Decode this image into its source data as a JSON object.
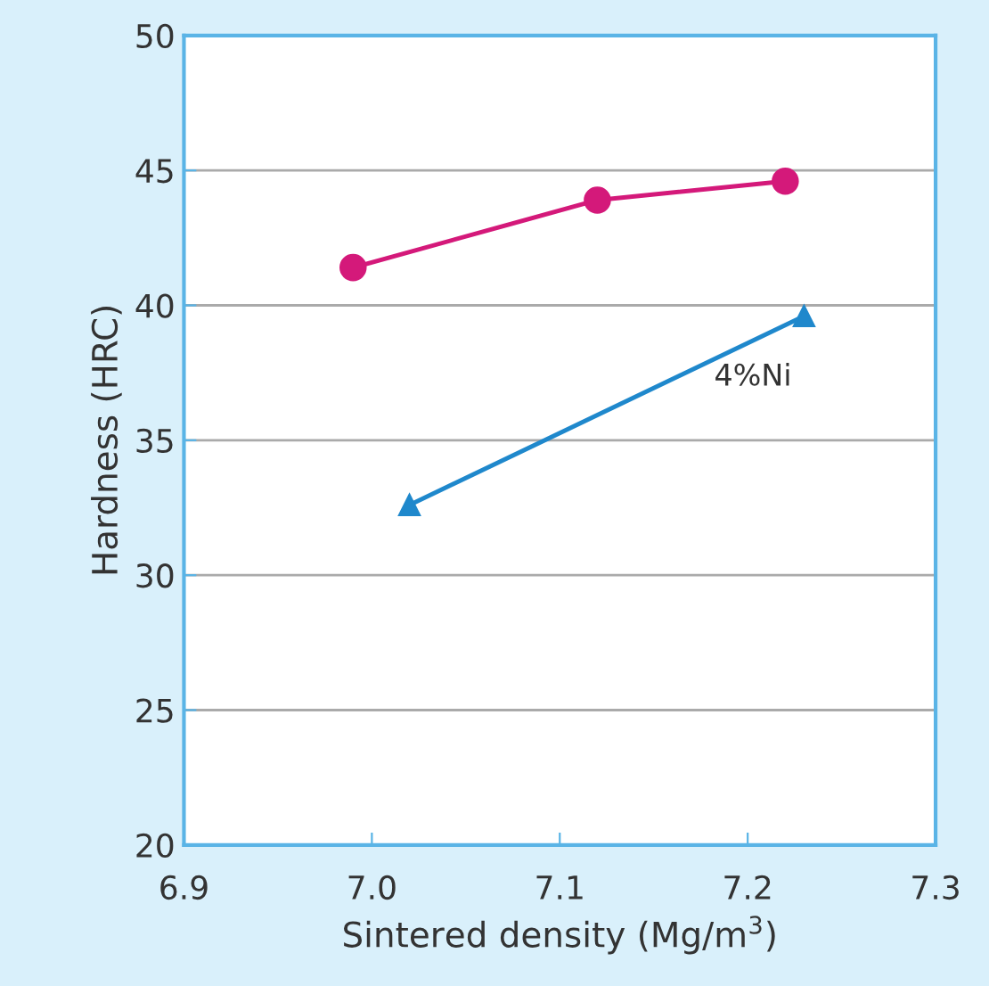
{
  "chart_data": {
    "type": "line",
    "xlabel": "Sintered density (Mg/m$^{3}$)",
    "ylabel": "Hardness (HRC)",
    "series": [
      {
        "color": "#d4197a",
        "marker": "circle",
        "x": [
          6.99,
          7.12,
          7.22
        ],
        "values": [
          41.4,
          43.9,
          44.6
        ]
      },
      {
        "name": "4%Ni",
        "color": "#1f88cc",
        "marker": "triangle",
        "x": [
          7.02,
          7.23
        ],
        "values": [
          32.6,
          39.6
        ]
      }
    ],
    "xlim": [
      6.9,
      7.3
    ],
    "xticks": [
      {
        "value": 6.9,
        "label": "6.9"
      },
      {
        "value": 7.0,
        "label": "7.0"
      },
      {
        "value": 7.1,
        "label": "7.1"
      },
      {
        "value": 7.2,
        "label": "7.2"
      },
      {
        "value": 7.3,
        "label": "7.3"
      }
    ],
    "ylim": [
      20,
      50
    ],
    "yticks": [
      20,
      25,
      30,
      35,
      40,
      45,
      50
    ],
    "grid": "y",
    "legend": false
  }
}
